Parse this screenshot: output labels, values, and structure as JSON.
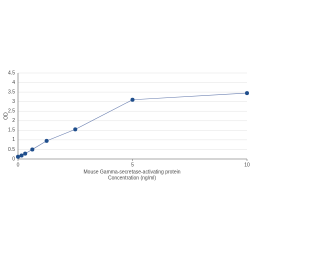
{
  "chart_data": {
    "type": "line",
    "x_label_lines": [
      "Mouse Gamma-secretase-activating protein",
      "Concentration (ng/ml)"
    ],
    "y_label": "OD",
    "x": [
      0,
      0.156,
      0.313,
      0.625,
      1.25,
      2.5,
      5,
      10
    ],
    "series": [
      {
        "color": "#1f4e8c",
        "values": [
          0.12,
          0.18,
          0.28,
          0.5,
          0.95,
          1.55,
          3.1,
          3.45
        ]
      }
    ],
    "xlim": [
      0,
      10
    ],
    "xticks": [
      0,
      5,
      10
    ],
    "ylim": [
      0,
      4.5
    ],
    "yticks": [
      0,
      0.5,
      1,
      1.5,
      2,
      2.5,
      3,
      3.5,
      4,
      4.5
    ],
    "grid": true
  }
}
